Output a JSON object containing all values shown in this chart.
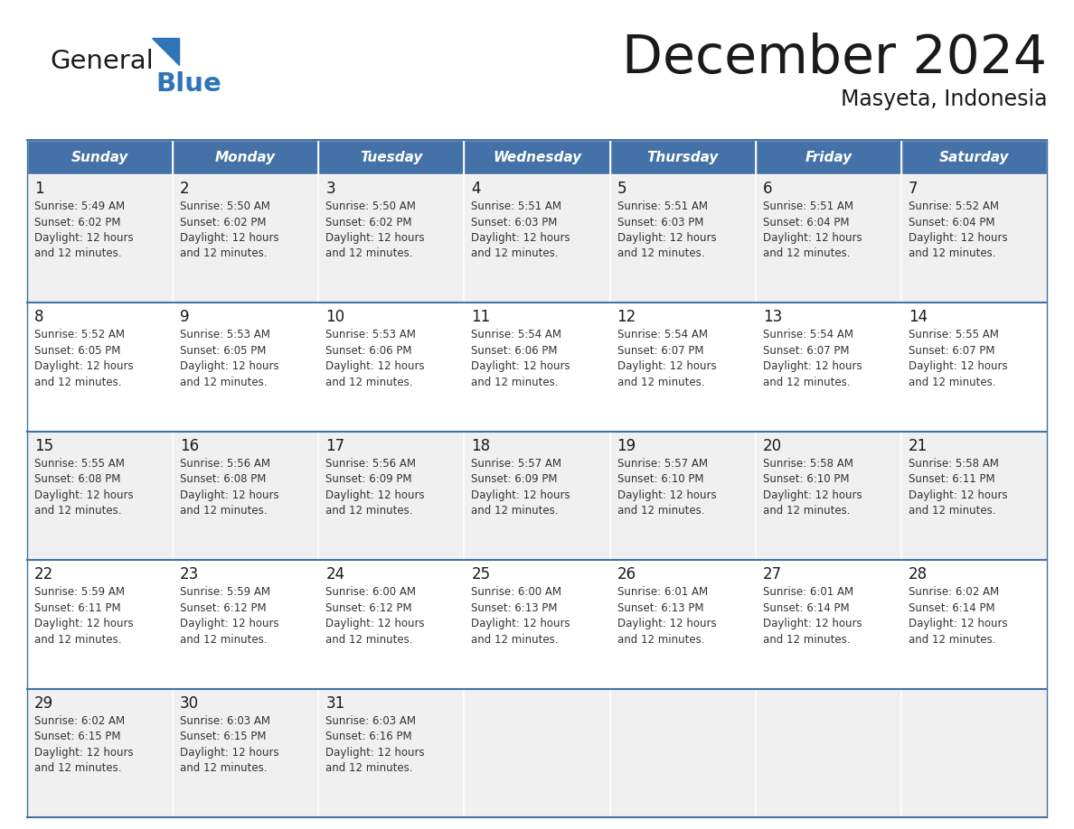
{
  "title": "December 2024",
  "subtitle": "Masyeta, Indonesia",
  "header_color": "#4472a8",
  "header_text_color": "#ffffff",
  "cell_bg_even": "#f0f0f0",
  "cell_bg_odd": "#ffffff",
  "border_color": "#4472a8",
  "day_headers": [
    "Sunday",
    "Monday",
    "Tuesday",
    "Wednesday",
    "Thursday",
    "Friday",
    "Saturday"
  ],
  "weeks": [
    [
      {
        "day": 1,
        "sunrise": "5:49 AM",
        "sunset": "6:02 PM"
      },
      {
        "day": 2,
        "sunrise": "5:50 AM",
        "sunset": "6:02 PM"
      },
      {
        "day": 3,
        "sunrise": "5:50 AM",
        "sunset": "6:02 PM"
      },
      {
        "day": 4,
        "sunrise": "5:51 AM",
        "sunset": "6:03 PM"
      },
      {
        "day": 5,
        "sunrise": "5:51 AM",
        "sunset": "6:03 PM"
      },
      {
        "day": 6,
        "sunrise": "5:51 AM",
        "sunset": "6:04 PM"
      },
      {
        "day": 7,
        "sunrise": "5:52 AM",
        "sunset": "6:04 PM"
      }
    ],
    [
      {
        "day": 8,
        "sunrise": "5:52 AM",
        "sunset": "6:05 PM"
      },
      {
        "day": 9,
        "sunrise": "5:53 AM",
        "sunset": "6:05 PM"
      },
      {
        "day": 10,
        "sunrise": "5:53 AM",
        "sunset": "6:06 PM"
      },
      {
        "day": 11,
        "sunrise": "5:54 AM",
        "sunset": "6:06 PM"
      },
      {
        "day": 12,
        "sunrise": "5:54 AM",
        "sunset": "6:07 PM"
      },
      {
        "day": 13,
        "sunrise": "5:54 AM",
        "sunset": "6:07 PM"
      },
      {
        "day": 14,
        "sunrise": "5:55 AM",
        "sunset": "6:07 PM"
      }
    ],
    [
      {
        "day": 15,
        "sunrise": "5:55 AM",
        "sunset": "6:08 PM"
      },
      {
        "day": 16,
        "sunrise": "5:56 AM",
        "sunset": "6:08 PM"
      },
      {
        "day": 17,
        "sunrise": "5:56 AM",
        "sunset": "6:09 PM"
      },
      {
        "day": 18,
        "sunrise": "5:57 AM",
        "sunset": "6:09 PM"
      },
      {
        "day": 19,
        "sunrise": "5:57 AM",
        "sunset": "6:10 PM"
      },
      {
        "day": 20,
        "sunrise": "5:58 AM",
        "sunset": "6:10 PM"
      },
      {
        "day": 21,
        "sunrise": "5:58 AM",
        "sunset": "6:11 PM"
      }
    ],
    [
      {
        "day": 22,
        "sunrise": "5:59 AM",
        "sunset": "6:11 PM"
      },
      {
        "day": 23,
        "sunrise": "5:59 AM",
        "sunset": "6:12 PM"
      },
      {
        "day": 24,
        "sunrise": "6:00 AM",
        "sunset": "6:12 PM"
      },
      {
        "day": 25,
        "sunrise": "6:00 AM",
        "sunset": "6:13 PM"
      },
      {
        "day": 26,
        "sunrise": "6:01 AM",
        "sunset": "6:13 PM"
      },
      {
        "day": 27,
        "sunrise": "6:01 AM",
        "sunset": "6:14 PM"
      },
      {
        "day": 28,
        "sunrise": "6:02 AM",
        "sunset": "6:14 PM"
      }
    ],
    [
      {
        "day": 29,
        "sunrise": "6:02 AM",
        "sunset": "6:15 PM"
      },
      {
        "day": 30,
        "sunrise": "6:03 AM",
        "sunset": "6:15 PM"
      },
      {
        "day": 31,
        "sunrise": "6:03 AM",
        "sunset": "6:16 PM"
      },
      null,
      null,
      null,
      null
    ]
  ],
  "logo_blue_color": "#2e75b6",
  "logo_black_color": "#1a1a1a",
  "daylight_line1": "Daylight: 12 hours",
  "daylight_line2": "and 12 minutes."
}
